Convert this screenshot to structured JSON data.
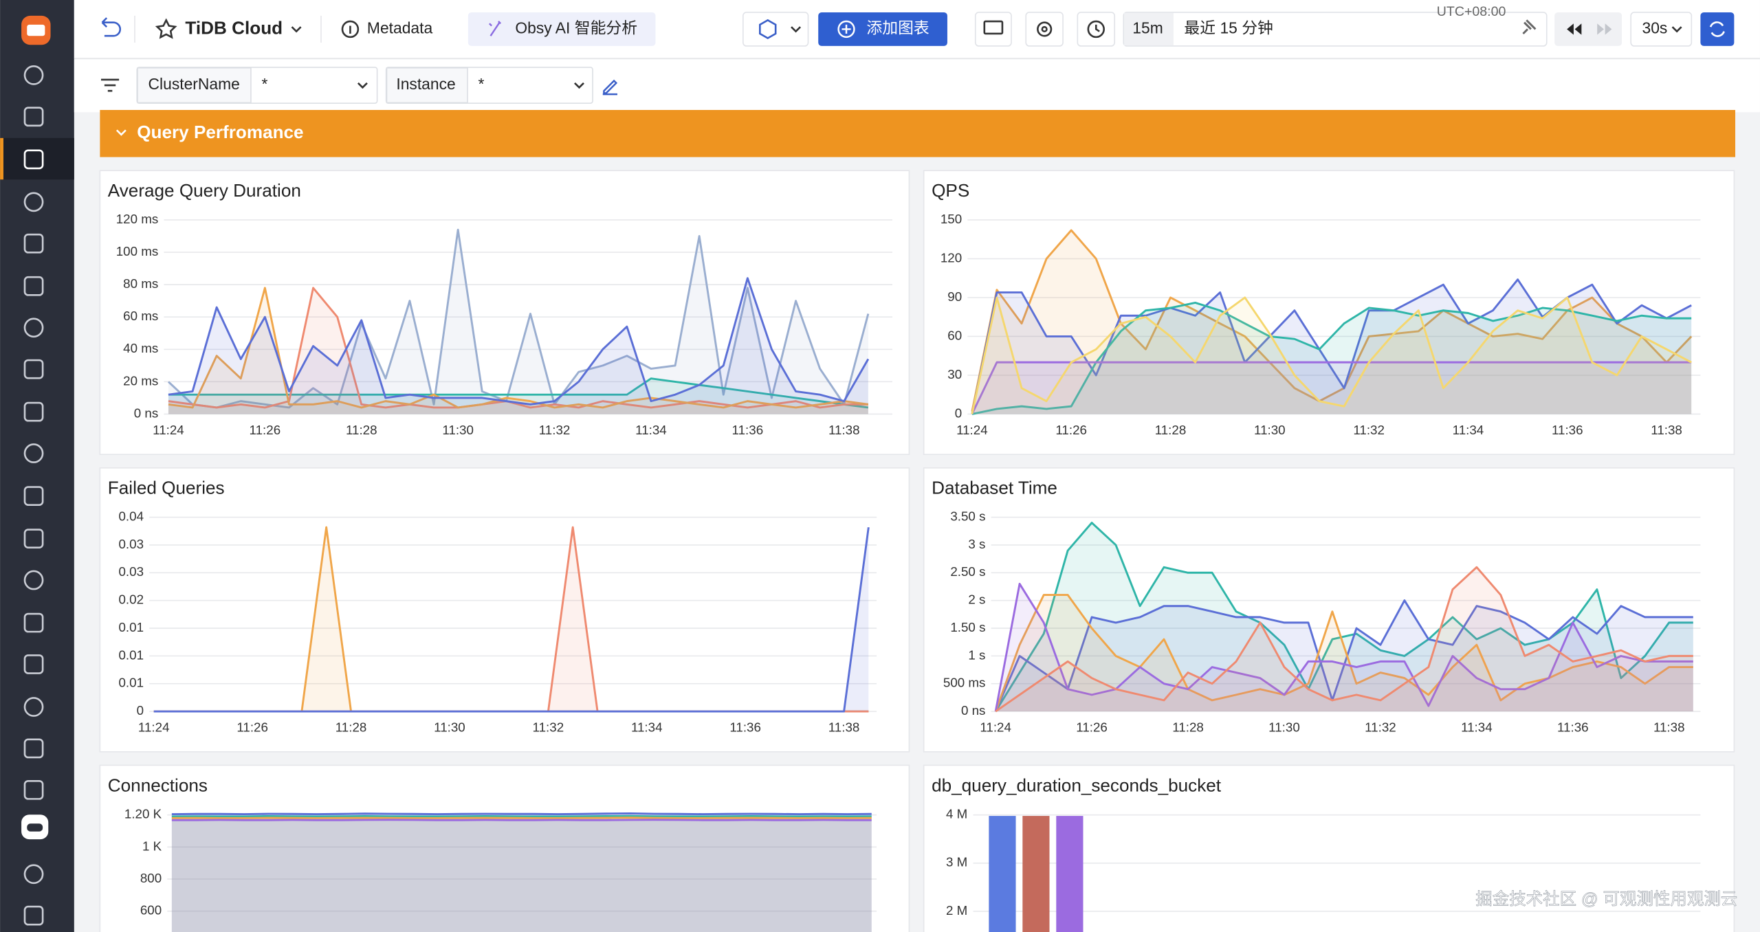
{
  "toolbar": {
    "workspace": "TiDB Cloud",
    "metadata": "Metadata",
    "ai": "Obsy AI 智能分析",
    "add_chart": "添加图表",
    "range_short": "15m",
    "range_text": "最近 15 分钟",
    "timezone": "UTC+08:00",
    "refresh": "30s"
  },
  "filters": [
    {
      "label": "ClusterName",
      "value": "*"
    },
    {
      "label": "Instance",
      "value": "*"
    }
  ],
  "section": "Query Perfromance",
  "watermark": "掘金技术社区 @ 可观测性用观测云",
  "chart_data": [
    {
      "type": "line",
      "title": "Average Query Duration",
      "categories": [
        "11:24",
        null,
        null,
        null,
        "11:26",
        null,
        null,
        null,
        "11:28",
        null,
        null,
        null,
        "11:30",
        null,
        null,
        null,
        "11:32",
        null,
        null,
        null,
        "11:34",
        null,
        null,
        null,
        "11:36",
        null,
        null,
        null,
        "11:38",
        null
      ],
      "ylim": [
        0,
        120
      ],
      "yticks": [
        {
          "value": 0,
          "label": "0 ns"
        },
        {
          "value": 20,
          "label": "20 ms"
        },
        {
          "value": 40,
          "label": "40 ms"
        },
        {
          "value": 60,
          "label": "60 ms"
        },
        {
          "value": 80,
          "label": "80 ms"
        },
        {
          "value": 100,
          "label": "100 ms"
        },
        {
          "value": 120,
          "label": "120 ms"
        }
      ],
      "grid": true,
      "series": [
        {
          "color": "#9aaed0",
          "values": [
            20,
            6,
            4,
            8,
            6,
            4,
            16,
            6,
            56,
            22,
            70,
            6,
            114,
            14,
            8,
            62,
            6,
            26,
            30,
            36,
            28,
            30,
            110,
            12,
            78,
            10,
            70,
            28,
            6,
            62
          ]
        },
        {
          "color": "#2fb5a8",
          "values": [
            12,
            12,
            12,
            12,
            12,
            12,
            12,
            12,
            12,
            12,
            12,
            12,
            12,
            12,
            12,
            12,
            12,
            12,
            12,
            12,
            22,
            20,
            18,
            16,
            14,
            12,
            10,
            8,
            6,
            4
          ]
        },
        {
          "color": "#ef8a70",
          "values": [
            8,
            6,
            4,
            6,
            4,
            8,
            78,
            60,
            6,
            4,
            6,
            4,
            4,
            6,
            8,
            4,
            6,
            4,
            8,
            6,
            4,
            6,
            8,
            6,
            4,
            6,
            8,
            4,
            6,
            6
          ]
        },
        {
          "color": "#f0a64a",
          "values": [
            6,
            4,
            36,
            22,
            78,
            6,
            6,
            8,
            4,
            8,
            6,
            12,
            4,
            6,
            10,
            8,
            4,
            6,
            4,
            8,
            10,
            8,
            6,
            4,
            8,
            6,
            4,
            6,
            8,
            6
          ]
        },
        {
          "color": "#5b6fd6",
          "values": [
            12,
            14,
            66,
            34,
            60,
            14,
            42,
            30,
            58,
            10,
            12,
            10,
            10,
            10,
            8,
            6,
            8,
            20,
            40,
            54,
            8,
            12,
            18,
            30,
            84,
            40,
            14,
            12,
            8,
            34
          ]
        }
      ]
    },
    {
      "type": "line",
      "title": "QPS",
      "categories": [
        "11:24",
        null,
        null,
        null,
        "11:26",
        null,
        null,
        null,
        "11:28",
        null,
        null,
        null,
        "11:30",
        null,
        null,
        null,
        "11:32",
        null,
        null,
        null,
        "11:34",
        null,
        null,
        null,
        "11:36",
        null,
        null,
        null,
        "11:38",
        null
      ],
      "ylim": [
        0,
        150
      ],
      "yticks": [
        0,
        30,
        60,
        90,
        120,
        150
      ],
      "grid": true,
      "series": [
        {
          "color": "#f0a64a",
          "values": [
            2,
            96,
            70,
            120,
            142,
            120,
            70,
            50,
            90,
            80,
            70,
            60,
            40,
            20,
            10,
            20,
            60,
            62,
            64,
            80,
            70,
            60,
            62,
            58,
            80,
            90,
            70,
            60,
            40,
            60
          ]
        },
        {
          "color": "#5b6fd6",
          "values": [
            0,
            94,
            94,
            60,
            60,
            30,
            76,
            76,
            82,
            76,
            94,
            40,
            60,
            80,
            50,
            20,
            80,
            80,
            90,
            100,
            70,
            80,
            104,
            75,
            90,
            100,
            70,
            84,
            74,
            84
          ]
        },
        {
          "color": "#2fb5a8",
          "values": [
            0,
            4,
            6,
            4,
            6,
            40,
            64,
            80,
            82,
            86,
            80,
            70,
            60,
            58,
            50,
            70,
            82,
            80,
            76,
            80,
            78,
            72,
            76,
            82,
            80,
            76,
            72,
            76,
            74,
            74
          ]
        },
        {
          "color": "#9b6be0",
          "values": [
            0,
            40,
            40,
            40,
            40,
            40,
            40,
            40,
            40,
            40,
            40,
            40,
            40,
            40,
            40,
            40,
            40,
            40,
            40,
            40,
            40,
            40,
            40,
            40,
            40,
            40,
            40,
            40,
            40,
            40
          ]
        },
        {
          "color": "#f5d76e",
          "values": [
            0,
            90,
            20,
            10,
            40,
            50,
            70,
            75,
            60,
            40,
            76,
            90,
            62,
            30,
            10,
            6,
            40,
            62,
            80,
            20,
            40,
            64,
            80,
            74,
            90,
            40,
            30,
            60,
            50,
            40
          ]
        }
      ]
    },
    {
      "type": "line",
      "title": "Failed Queries",
      "categories": [
        "11:24",
        null,
        null,
        null,
        "11:26",
        null,
        null,
        null,
        "11:28",
        null,
        null,
        null,
        "11:30",
        null,
        null,
        null,
        "11:32",
        null,
        null,
        null,
        "11:34",
        null,
        null,
        null,
        "11:36",
        null,
        null,
        null,
        "11:38",
        null
      ],
      "ylim": [
        0,
        0.035
      ],
      "yticks": [
        0,
        {
          "value": 0.005,
          "label": "0.01"
        },
        0.01,
        {
          "value": 0.015,
          "label": "0.01"
        },
        0.02,
        {
          "value": 0.025,
          "label": "0.03"
        },
        0.03,
        {
          "value": 0.035,
          "label": "0.04"
        }
      ],
      "grid": true,
      "series": [
        {
          "color": "#f0a64a",
          "values": [
            0,
            0,
            0,
            0,
            0,
            0,
            0,
            0.0332,
            0,
            0,
            0,
            0,
            0,
            0,
            0,
            0,
            0,
            0,
            0,
            0,
            0,
            0,
            0,
            0,
            0,
            0,
            0,
            0,
            0,
            0
          ]
        },
        {
          "color": "#ef8a70",
          "values": [
            0,
            0,
            0,
            0,
            0,
            0,
            0,
            0,
            0,
            0,
            0,
            0,
            0,
            0,
            0,
            0,
            0,
            0.0332,
            0,
            0,
            0,
            0,
            0,
            0,
            0,
            0,
            0,
            0,
            0,
            0
          ]
        },
        {
          "color": "#5b6fd6",
          "values": [
            0,
            0,
            0,
            0,
            0,
            0,
            0,
            0,
            0,
            0,
            0,
            0,
            0,
            0,
            0,
            0,
            0,
            0,
            0,
            0,
            0,
            0,
            0,
            0,
            0,
            0,
            0,
            0,
            0,
            0.0332
          ]
        }
      ]
    },
    {
      "type": "line",
      "title": "Databaset Time",
      "categories": [
        "11:24",
        null,
        null,
        null,
        "11:26",
        null,
        null,
        null,
        "11:28",
        null,
        null,
        null,
        "11:30",
        null,
        null,
        null,
        "11:32",
        null,
        null,
        null,
        "11:34",
        null,
        null,
        null,
        "11:36",
        null,
        null,
        null,
        "11:38",
        null
      ],
      "ylim": [
        0,
        3.5
      ],
      "yticks": [
        {
          "value": 0,
          "label": "0 ns"
        },
        {
          "value": 0.5,
          "label": "500 ms"
        },
        {
          "value": 1,
          "label": "1 s"
        },
        {
          "value": 1.5,
          "label": "1.50 s"
        },
        {
          "value": 2,
          "label": "2 s"
        },
        {
          "value": 2.5,
          "label": "2.50 s"
        },
        {
          "value": 3,
          "label": "3 s"
        },
        {
          "value": 3.5,
          "label": "3.50 s"
        }
      ],
      "grid": true,
      "series": [
        {
          "color": "#2fb5a8",
          "values": [
            0,
            0.7,
            1.4,
            2.9,
            3.4,
            3.0,
            1.9,
            2.6,
            2.5,
            2.5,
            1.8,
            1.6,
            1.2,
            0.4,
            1.3,
            1.4,
            1.1,
            1.0,
            1.3,
            1.7,
            1.3,
            1.5,
            1.2,
            1.3,
            1.6,
            2.2,
            0.6,
            1.0,
            1.6,
            1.6
          ]
        },
        {
          "color": "#5b6fd6",
          "values": [
            0,
            1.0,
            0.7,
            0.4,
            1.7,
            1.6,
            1.7,
            1.9,
            1.9,
            1.8,
            1.7,
            1.7,
            1.6,
            1.6,
            0.2,
            1.5,
            1.2,
            2.0,
            1.3,
            1.2,
            1.9,
            1.8,
            1.6,
            1.3,
            1.7,
            1.4,
            1.9,
            1.7,
            1.7,
            1.7
          ]
        },
        {
          "color": "#f0a64a",
          "values": [
            0,
            1.2,
            2.1,
            2.1,
            1.5,
            1.0,
            0.8,
            1.3,
            0.4,
            0.2,
            0.3,
            0.4,
            0.3,
            0.5,
            1.8,
            0.5,
            0.7,
            0.6,
            0.3,
            0.8,
            1.2,
            0.2,
            0.5,
            0.6,
            0.8,
            0.9,
            0.8,
            0.5,
            0.8,
            0.8
          ]
        },
        {
          "color": "#9b6be0",
          "values": [
            0,
            2.3,
            1.6,
            0.4,
            0.3,
            0.4,
            0.8,
            0.5,
            0.4,
            0.8,
            0.7,
            0.6,
            0.3,
            0.9,
            0.9,
            0.8,
            0.9,
            0.9,
            0.1,
            1.0,
            0.6,
            0.4,
            0.4,
            0.6,
            1.6,
            0.8,
            1.0,
            0.9,
            0.9,
            0.9
          ]
        },
        {
          "color": "#ef8a70",
          "values": [
            0,
            0.3,
            0.6,
            0.9,
            0.6,
            0.4,
            0.3,
            0.2,
            0.7,
            0.5,
            0.9,
            1.6,
            0.8,
            0.4,
            0.2,
            0.3,
            0.2,
            0.5,
            0.8,
            2.2,
            2.6,
            2.1,
            1.0,
            1.2,
            0.9,
            1.0,
            1.1,
            0.9,
            1.0,
            1.0
          ]
        }
      ]
    },
    {
      "type": "line",
      "title": "Connections",
      "categories": [
        null,
        null,
        null,
        null,
        null,
        null,
        null,
        null,
        null,
        null,
        null,
        null,
        null,
        null,
        null,
        null,
        null,
        null,
        null,
        null,
        null,
        null,
        null,
        null,
        null,
        null,
        null,
        null,
        null,
        null
      ],
      "ylim": [
        467,
        1230
      ],
      "yticks": [
        600,
        800,
        {
          "value": 1000,
          "label": "1 K"
        },
        {
          "value": 1200,
          "label": "1.20 K"
        }
      ],
      "grid": true,
      "series": [
        {
          "color": "#5b6fd6",
          "values": [
            1205,
            1206,
            1206,
            1205,
            1207,
            1206,
            1205,
            1206,
            1208,
            1207,
            1206,
            1205,
            1206,
            1207,
            1206,
            1206,
            1205,
            1206,
            1208,
            1210,
            1207,
            1206,
            1205,
            1206,
            1207,
            1206,
            1205,
            1206,
            1205,
            1206
          ]
        },
        {
          "color": "#2fb5a8",
          "values": [
            1190,
            1191,
            1190,
            1190,
            1192,
            1191,
            1190,
            1191,
            1192,
            1191,
            1190,
            1190,
            1191,
            1192,
            1191,
            1190,
            1190,
            1191,
            1192,
            1193,
            1191,
            1190,
            1190,
            1191,
            1192,
            1191,
            1190,
            1191,
            1190,
            1191
          ]
        },
        {
          "color": "#f0a64a",
          "values": [
            1180,
            1181,
            1180,
            1180,
            1182,
            1181,
            1180,
            1181,
            1182,
            1181,
            1180,
            1180,
            1181,
            1182,
            1181,
            1180,
            1180,
            1181,
            1182,
            1183,
            1181,
            1180,
            1180,
            1181,
            1182,
            1181,
            1180,
            1181,
            1180,
            1181
          ]
        },
        {
          "color": "#9b6be0",
          "values": [
            1168,
            1168,
            1169,
            1168,
            1168,
            1169,
            1168,
            1168,
            1169,
            1170,
            1169,
            1168,
            1168,
            1169,
            1168,
            1168,
            1169,
            1168,
            1168,
            1169,
            1170,
            1169,
            1168,
            1168,
            1169,
            1168,
            1168,
            1169,
            1168,
            1168
          ]
        }
      ]
    },
    {
      "type": "bar",
      "title": "db_query_duration_seconds_bucket",
      "categories": [
        null,
        null,
        null
      ],
      "values": [
        3980000,
        3980000,
        3980000
      ],
      "colors": [
        "#5b7be0",
        "#c46a5c",
        "#9b6be0"
      ],
      "ylim": [
        1560000,
        4100000
      ],
      "yticks": [
        {
          "value": 2000000,
          "label": "2 M"
        },
        {
          "value": 3000000,
          "label": "3 M"
        },
        {
          "value": 4000000,
          "label": "4 M"
        }
      ],
      "grid": true
    }
  ]
}
